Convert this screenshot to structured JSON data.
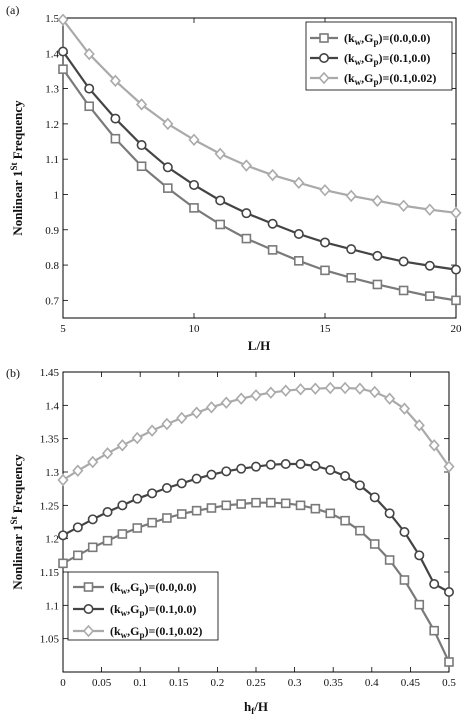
{
  "chart_data": [
    {
      "type": "line",
      "panel_label": "(a)",
      "xlabel": "L/H",
      "ylabel": "Nonlinear 1St Frequency",
      "xlim": [
        5,
        20
      ],
      "ylim": [
        0.65,
        1.5
      ],
      "xticks": [
        5,
        10,
        15,
        20
      ],
      "yticks": [
        0.7,
        0.8,
        0.9,
        1.0,
        1.1,
        1.2,
        1.3,
        1.4,
        1.5
      ],
      "ytick_labels": [
        "0.7",
        "0.8",
        "0.9",
        "1",
        "1.1",
        "1.2",
        "1.3",
        "1.4",
        "1.5"
      ],
      "legend_position": "top-right",
      "x": [
        5,
        6,
        7,
        8,
        9,
        10,
        11,
        12,
        13,
        14,
        15,
        16,
        17,
        18,
        19,
        20
      ],
      "series": [
        {
          "name": "(kw,Gp)=(0.0,0.0)",
          "marker": "square",
          "color": "#7a7a7a",
          "values": [
            1.355,
            1.25,
            1.158,
            1.08,
            1.018,
            0.962,
            0.915,
            0.875,
            0.843,
            0.812,
            0.785,
            0.764,
            0.745,
            0.728,
            0.712,
            0.7
          ]
        },
        {
          "name": "(kw,Gp)=(0.1,0.0)",
          "marker": "circle",
          "color": "#444444",
          "values": [
            1.405,
            1.3,
            1.215,
            1.14,
            1.077,
            1.027,
            0.983,
            0.947,
            0.917,
            0.888,
            0.864,
            0.845,
            0.826,
            0.81,
            0.798,
            0.787
          ]
        },
        {
          "name": "(kw,Gp)=(0.1,0.02)",
          "marker": "diamond",
          "color": "#aaaaaa",
          "values": [
            1.495,
            1.398,
            1.322,
            1.255,
            1.2,
            1.155,
            1.115,
            1.082,
            1.055,
            1.033,
            1.012,
            0.996,
            0.982,
            0.968,
            0.957,
            0.948
          ]
        }
      ]
    },
    {
      "type": "line",
      "panel_label": "(b)",
      "xlabel": "hf/H",
      "ylabel": "Nonlinear 1St Frequency",
      "xlim": [
        0,
        0.5
      ],
      "ylim": [
        1.0,
        1.45
      ],
      "xticks": [
        0,
        0.05,
        0.1,
        0.15,
        0.2,
        0.25,
        0.3,
        0.35,
        0.4,
        0.45,
        0.5
      ],
      "xtick_labels": [
        "0",
        "0.05",
        "0.1",
        "0.15",
        "0.2",
        "0.25",
        "0.3",
        "0.35",
        "0.4",
        "0.45",
        "0.5"
      ],
      "yticks": [
        1.05,
        1.1,
        1.15,
        1.2,
        1.25,
        1.3,
        1.35,
        1.4,
        1.45
      ],
      "ytick_labels": [
        "1.05",
        "1.1",
        "1.15",
        "1.2",
        "1.25",
        "1.3",
        "1.35",
        "1.4",
        "1.45"
      ],
      "legend_position": "bottom-left",
      "x": [
        0,
        0.0192,
        0.0385,
        0.0577,
        0.0769,
        0.0962,
        0.1154,
        0.1346,
        0.1538,
        0.1731,
        0.1923,
        0.2115,
        0.2308,
        0.25,
        0.2692,
        0.2885,
        0.3077,
        0.3269,
        0.3462,
        0.3654,
        0.3846,
        0.4038,
        0.4231,
        0.4423,
        0.4615,
        0.4808,
        0.5
      ],
      "series": [
        {
          "name": "(kw,Gp)=(0.0,0.0)",
          "marker": "square",
          "color": "#7a7a7a",
          "values": [
            1.163,
            1.175,
            1.187,
            1.197,
            1.207,
            1.216,
            1.224,
            1.231,
            1.237,
            1.242,
            1.246,
            1.25,
            1.252,
            1.254,
            1.254,
            1.253,
            1.25,
            1.245,
            1.238,
            1.227,
            1.212,
            1.192,
            1.168,
            1.138,
            1.101,
            1.062,
            1.015
          ]
        },
        {
          "name": "(kw,Gp)=(0.1,0.0)",
          "marker": "circle",
          "color": "#444444",
          "values": [
            1.205,
            1.217,
            1.229,
            1.24,
            1.25,
            1.26,
            1.268,
            1.276,
            1.283,
            1.29,
            1.296,
            1.301,
            1.305,
            1.308,
            1.311,
            1.312,
            1.312,
            1.309,
            1.303,
            1.294,
            1.28,
            1.262,
            1.238,
            1.21,
            1.175,
            1.132,
            1.12
          ]
        },
        {
          "name": "(kw,Gp)=(0.1,0.02)",
          "marker": "diamond",
          "color": "#aaaaaa",
          "values": [
            1.288,
            1.302,
            1.315,
            1.328,
            1.34,
            1.351,
            1.362,
            1.372,
            1.381,
            1.389,
            1.397,
            1.404,
            1.41,
            1.415,
            1.419,
            1.422,
            1.424,
            1.425,
            1.426,
            1.426,
            1.425,
            1.42,
            1.41,
            1.395,
            1.37,
            1.34,
            1.308
          ]
        }
      ]
    }
  ],
  "legend_labels": {
    "s0": {
      "pre": "(k",
      "sub1": "w",
      "mid": ",G",
      "sub2": "p",
      "post": ")=(0.0,0.0)"
    },
    "s1": {
      "pre": "(k",
      "sub1": "w",
      "mid": ",G",
      "sub2": "p",
      "post": ")=(0.1,0.0)"
    },
    "s2": {
      "pre": "(k",
      "sub1": "w",
      "mid": ",G",
      "sub2": "p",
      "post": ")=(0.1,0.02)"
    }
  },
  "axis_label_parts": {
    "ylabel": {
      "pre": "Nonlinear 1",
      "sup": "St",
      "post": " Frequency"
    },
    "xlabel_b": {
      "pre": "h",
      "sub": "f",
      "post": "/H"
    }
  }
}
